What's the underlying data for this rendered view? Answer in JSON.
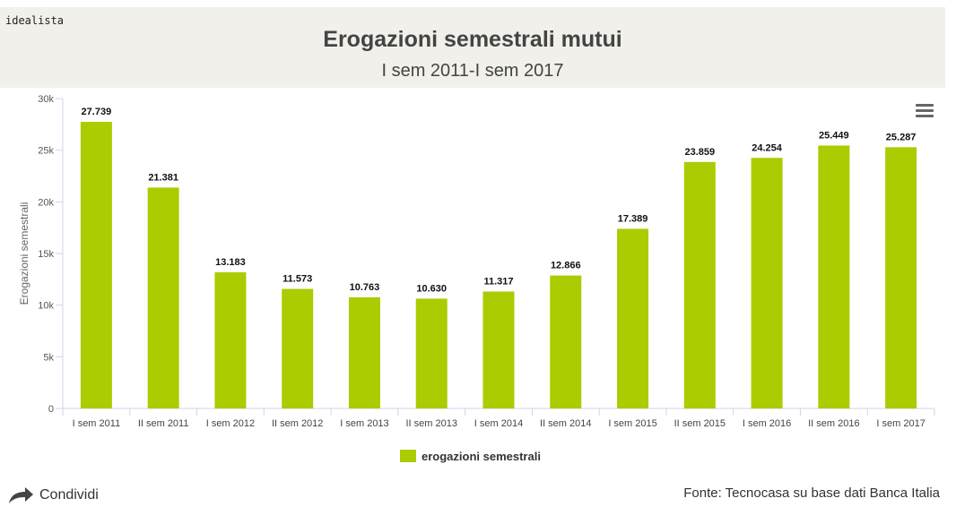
{
  "header": {
    "brand": "idealista",
    "title": "Erogazioni semestrali mutui",
    "subtitle": "I sem 2011-I sem 2017"
  },
  "colors": {
    "bar": "#aacc00",
    "header_bg": "#f1f0ea"
  },
  "chart_data": {
    "type": "bar",
    "categories": [
      "I sem 2011",
      "II sem 2011",
      "I sem 2012",
      "II sem 2012",
      "I sem 2013",
      "II sem 2013",
      "I sem 2014",
      "II sem 2014",
      "I sem 2015",
      "II sem 2015",
      "I sem 2016",
      "II sem 2016",
      "I sem 2017"
    ],
    "values": [
      27739,
      21381,
      13183,
      11573,
      10763,
      10630,
      11317,
      12866,
      17389,
      23859,
      24254,
      25449,
      25287
    ],
    "data_labels": [
      "27.739",
      "21.381",
      "13.183",
      "11.573",
      "10.763",
      "10.630",
      "11.317",
      "12.866",
      "17.389",
      "23.859",
      "24.254",
      "25.449",
      "25.287"
    ],
    "series": [
      {
        "name": "erogazioni semestrali"
      }
    ],
    "ylabel": "Erogazioni semestrali",
    "ylim": [
      0,
      30000
    ],
    "yticks": [
      0,
      5000,
      10000,
      15000,
      20000,
      25000,
      30000
    ],
    "ytick_labels": [
      "0",
      "5k",
      "10k",
      "15k",
      "20k",
      "25k",
      "30k"
    ],
    "grid": false,
    "legend": "bottom-center"
  },
  "icons": {
    "menu": "hamburger-menu-icon",
    "share": "share-arrow-icon"
  },
  "footer": {
    "share_label": "Condividi",
    "source": "Fonte: Tecnocasa su base dati Banca Italia"
  }
}
